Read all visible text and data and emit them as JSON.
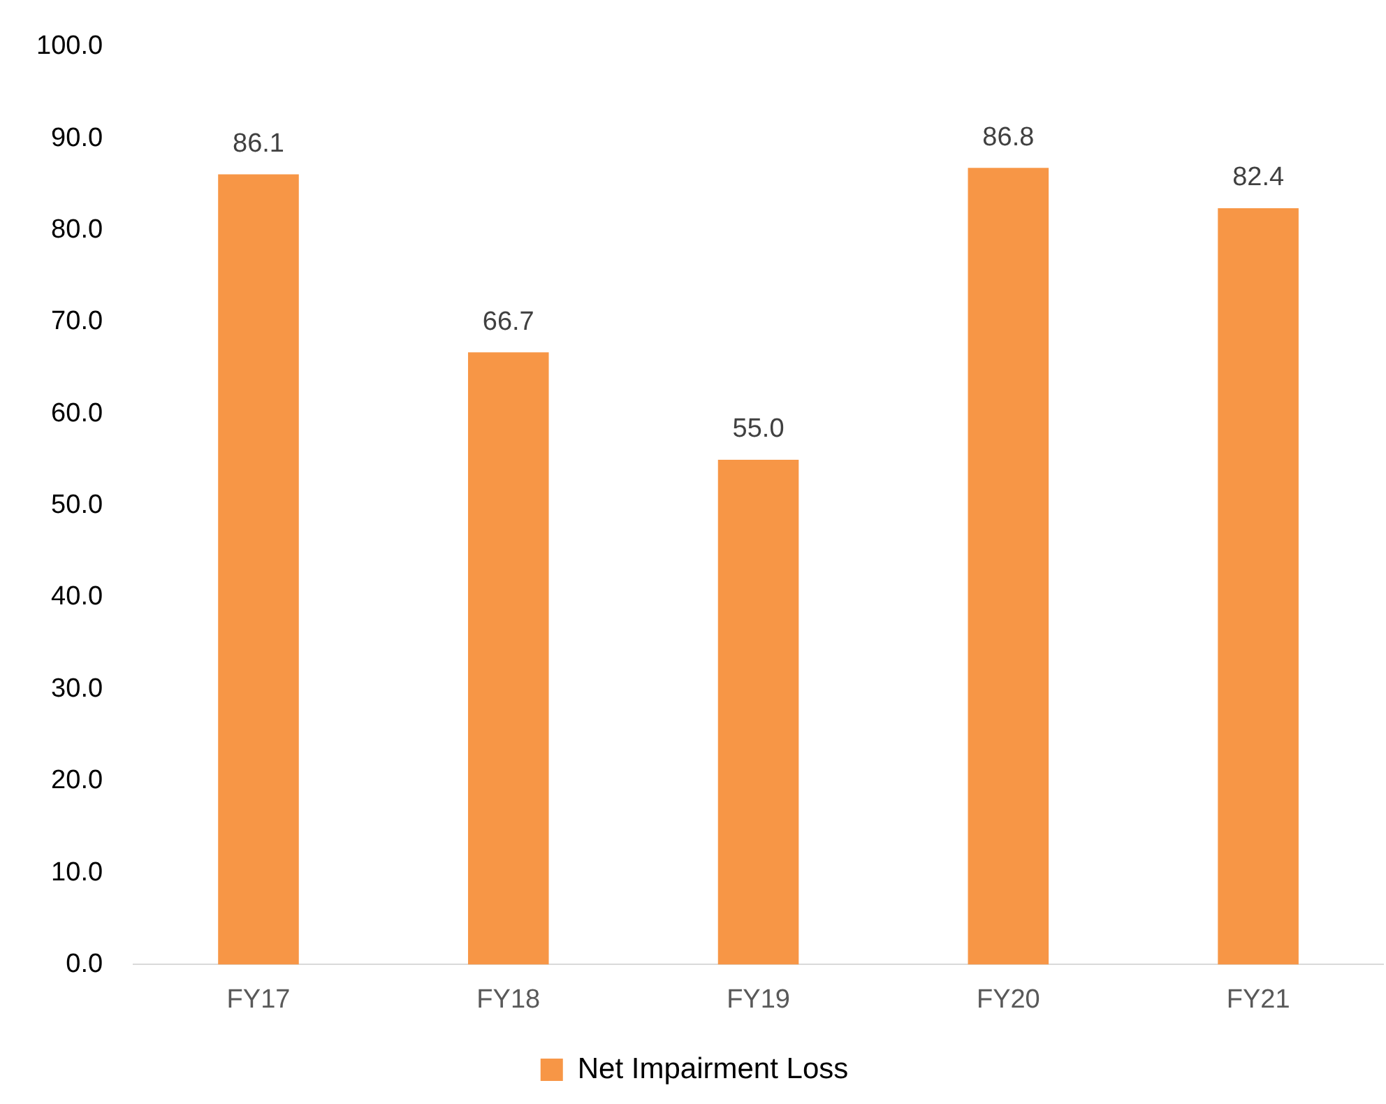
{
  "chart_data": {
    "type": "bar",
    "categories": [
      "FY17",
      "FY18",
      "FY19",
      "FY20",
      "FY21"
    ],
    "series": [
      {
        "name": "Net Impairment Loss",
        "color": "#f79646",
        "values": [
          86.1,
          66.7,
          55.0,
          86.8,
          82.4
        ],
        "value_labels": [
          "86.1",
          "66.7",
          "55.0",
          "86.8",
          "82.4"
        ]
      }
    ],
    "ylim": [
      0,
      100
    ],
    "yticks": [
      {
        "value": 0,
        "label": "0.0"
      },
      {
        "value": 10,
        "label": "10.0"
      },
      {
        "value": 20,
        "label": "20.0"
      },
      {
        "value": 30,
        "label": "30.0"
      },
      {
        "value": 40,
        "label": "40.0"
      },
      {
        "value": 50,
        "label": "50.0"
      },
      {
        "value": 60,
        "label": "60.0"
      },
      {
        "value": 70,
        "label": "70.0"
      },
      {
        "value": 80,
        "label": "80.0"
      },
      {
        "value": 90,
        "label": "90.0"
      },
      {
        "value": 100,
        "label": "100.0"
      }
    ],
    "grid": false,
    "legend": "bottom"
  }
}
